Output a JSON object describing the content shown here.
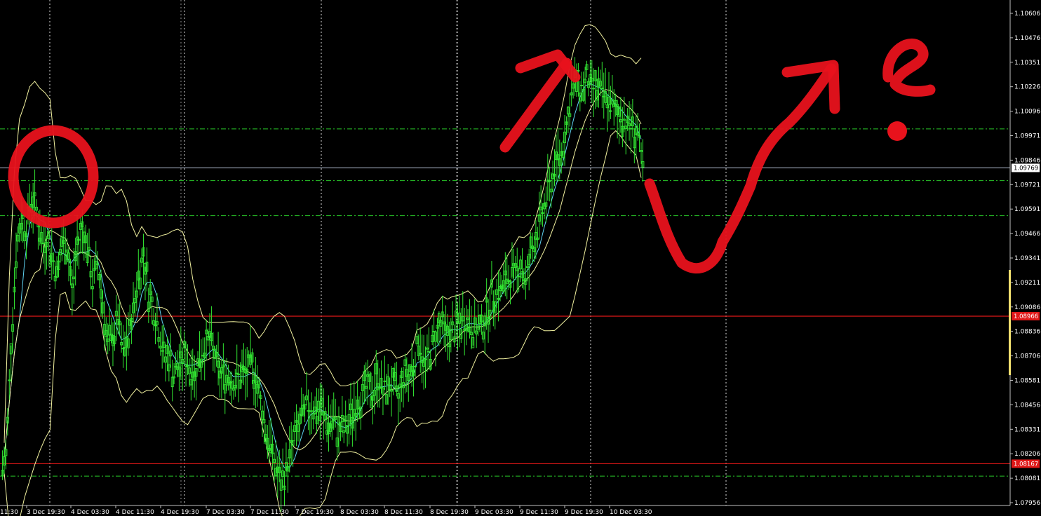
{
  "chart_data": {
    "type": "candlestick",
    "colors": {
      "background": "#000000",
      "candle": "#32e632",
      "bands": "#f2f2a0",
      "ma_fast": "#5fd3f3",
      "ma_slow": "#f2f2a0",
      "grid_vertical": "#ffffff",
      "level_green": "#28c828",
      "level_red": "#e01818",
      "current_price_line": "#b8c4d8",
      "annotation": "#e8121c",
      "axis_text": "#ffffff",
      "volume_bar": "#f2e070"
    },
    "y_axis": {
      "range": [
        1.07956,
        1.10606
      ],
      "ticks": [
        "1.10606",
        "1.10476",
        "1.10351",
        "1.10226",
        "1.10096",
        "1.09971",
        "1.09846",
        "1.09721",
        "1.09591",
        "1.09466",
        "1.09341",
        "1.09211",
        "1.09086",
        "1.08836",
        "1.08706",
        "1.08581",
        "1.08456",
        "1.08331",
        "1.08206",
        "1.08081",
        "1.07956"
      ],
      "position": "right"
    },
    "x_axis": {
      "first_label": "11:30",
      "ticks": [
        "3 Dec 19:30",
        "4 Dec 03:30",
        "4 Dec 11:30",
        "4 Dec 19:30",
        "7 Dec 03:30",
        "7 Dec 11:30",
        "7 Dec 19:30",
        "8 Dec 03:30",
        "8 Dec 11:30",
        "8 Dec 19:30",
        "9 Dec 03:30",
        "9 Dec 11:30",
        "9 Dec 19:30",
        "10 Dec 03:30"
      ]
    },
    "grid": "vertical-dotted",
    "price_tags": {
      "current": "1.09769",
      "red_upper": "1.08966",
      "red_lower": "1.08167"
    },
    "levels_green_dashed": [
      1.0998,
      1.097,
      1.0951,
      1.081
    ],
    "levels_red": [
      1.08966,
      1.08167
    ],
    "current_price": 1.09769,
    "close_series": [
      1.082,
      1.088,
      1.093,
      1.095,
      1.0945,
      1.096,
      1.0955,
      1.0935,
      1.094,
      1.093,
      1.092,
      1.0935,
      1.0935,
      1.091,
      1.0935,
      1.0945,
      1.0935,
      1.0915,
      1.0925,
      1.0905,
      1.088,
      1.0885,
      1.0895,
      1.0875,
      1.0885,
      1.09,
      1.092,
      1.093,
      1.091,
      1.09,
      1.089,
      1.0875,
      1.0875,
      1.0865,
      1.087,
      1.0875,
      1.087,
      1.0865,
      1.0875,
      1.088,
      1.0885,
      1.0875,
      1.0865,
      1.0865,
      1.0865,
      1.086,
      1.0865,
      1.0865,
      1.087,
      1.0865,
      1.085,
      1.0835,
      1.0825,
      1.0815,
      1.0805,
      1.0813,
      1.0825,
      1.0835,
      1.084,
      1.0848,
      1.0848,
      1.0845,
      1.0845,
      1.0838,
      1.084,
      1.0835,
      1.0835,
      1.0835,
      1.0845,
      1.085,
      1.0855,
      1.0858,
      1.0855,
      1.0865,
      1.0855,
      1.086,
      1.0858,
      1.0852,
      1.0865,
      1.0865,
      1.087,
      1.0885,
      1.087,
      1.0875,
      1.0885,
      1.0892,
      1.089,
      1.0885,
      1.089,
      1.0892,
      1.0895,
      1.0893,
      1.089,
      1.089,
      1.0895,
      1.0905,
      1.091,
      1.091,
      1.0915,
      1.0918,
      1.092,
      1.0925,
      1.0915,
      1.093,
      1.094,
      1.095,
      1.096,
      1.097,
      1.098,
      1.0985,
      1.1,
      1.1015,
      1.1025,
      1.102,
      1.1025,
      1.102,
      1.102,
      1.1015,
      1.1015,
      1.101,
      1.1005,
      1.1005,
      1.1,
      1.1,
      1.0995,
      1.0975
    ],
    "annotations": [
      "circle at early high",
      "arrow up at top",
      "drawn V-shape and arrow up",
      "question mark"
    ]
  }
}
